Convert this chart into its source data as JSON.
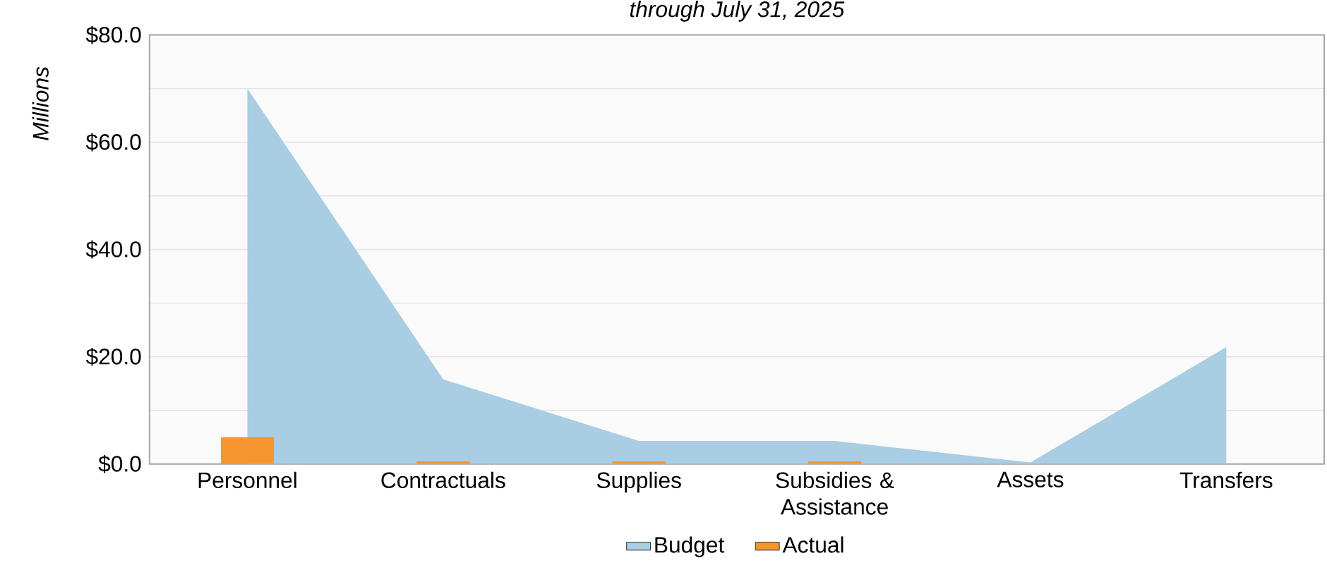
{
  "chart_data": {
    "type": "area",
    "title": "through July 31, 2025",
    "ylabel": "Millions",
    "categories": [
      "Personnel",
      "Contractuals",
      "Supplies",
      "Subsidies & Assistance",
      "Assets",
      "Transfers"
    ],
    "series": [
      {
        "name": "Budget",
        "color": "#a9cde3",
        "values": [
          70.0,
          15.8,
          4.3,
          4.3,
          0.3,
          21.8
        ]
      },
      {
        "name": "Actual",
        "type": "bar",
        "color": "#f7962f",
        "values": [
          5.0,
          0.5,
          0.5,
          0.5,
          0.0,
          0.0
        ]
      }
    ],
    "ylim": [
      0,
      80
    ],
    "yticks": [
      {
        "value": 0,
        "label": "$0.0"
      },
      {
        "value": 20,
        "label": "$20.0"
      },
      {
        "value": 40,
        "label": "$40.0"
      },
      {
        "value": 60,
        "label": "$60.0"
      },
      {
        "value": 80,
        "label": "$80.0"
      }
    ],
    "grid": "y",
    "legend": "bottom"
  }
}
